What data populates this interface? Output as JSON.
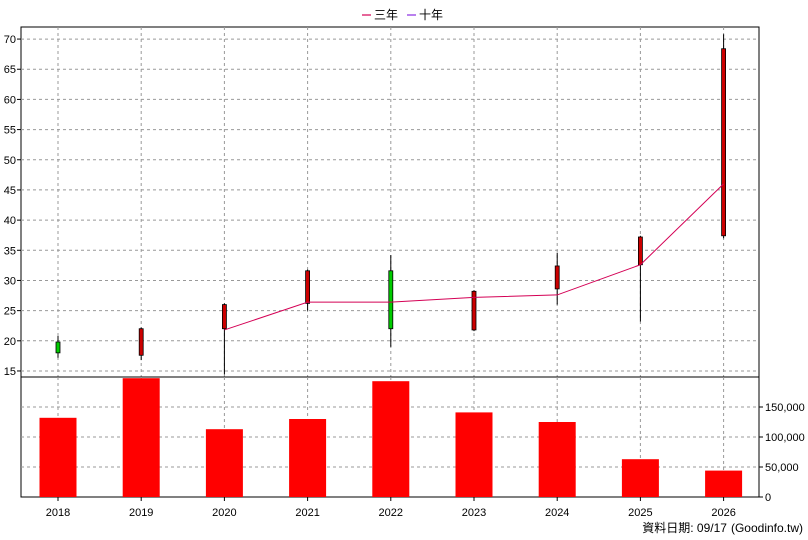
{
  "chart_data": {
    "type": "candlestick-volume",
    "legend": [
      {
        "name": "三年",
        "color": "#d40055"
      },
      {
        "name": "十年",
        "color": "#8a2be2"
      }
    ],
    "x": [
      "2018",
      "2019",
      "2020",
      "2021",
      "2022",
      "2023",
      "2024",
      "2025",
      "2026"
    ],
    "candles": [
      {
        "open": 18.0,
        "close": 19.8,
        "high": 20.8,
        "low": 17.2
      },
      {
        "open": 22.0,
        "close": 17.6,
        "high": 22.2,
        "low": 16.8
      },
      {
        "open": 26.0,
        "close": 22.0,
        "high": 26.2,
        "low": 14.4
      },
      {
        "open": 31.6,
        "close": 26.2,
        "high": 31.8,
        "low": 25.0
      },
      {
        "open": 22.0,
        "close": 31.6,
        "high": 34.2,
        "low": 19.0
      },
      {
        "open": 28.2,
        "close": 21.8,
        "high": 28.4,
        "low": 21.6
      },
      {
        "open": 32.4,
        "close": 28.6,
        "high": 34.6,
        "low": 26.0
      },
      {
        "open": 37.2,
        "close": 32.6,
        "high": 37.4,
        "low": 23.2
      },
      {
        "open": 68.4,
        "close": 37.4,
        "high": 70.8,
        "low": 37.0
      }
    ],
    "up_color": "#00cc00",
    "down_color": "#cc0000",
    "three_year_avg": [
      null,
      null,
      21.8,
      26.4,
      26.4,
      27.2,
      27.6,
      32.6,
      46.0
    ],
    "ten_year_avg": [],
    "volume": [
      132000,
      198000,
      113000,
      130000,
      193000,
      141000,
      125000,
      63000,
      44000
    ],
    "volume_color": "#ff0000",
    "price_ylim": [
      14,
      72
    ],
    "price_ticks": [
      15,
      20,
      25,
      30,
      35,
      40,
      45,
      50,
      55,
      60,
      65,
      70
    ],
    "volume_ylim": [
      0,
      200000
    ],
    "volume_ticks": [
      0,
      50000,
      100000,
      150000
    ],
    "volume_tick_labels": [
      "0",
      "50,000",
      "100,000",
      "150,000"
    ],
    "grid": true,
    "legend_position": "top-center"
  },
  "footer": {
    "date_label": "資料日期: 09/17",
    "source": "(Goodinfo.tw)"
  }
}
